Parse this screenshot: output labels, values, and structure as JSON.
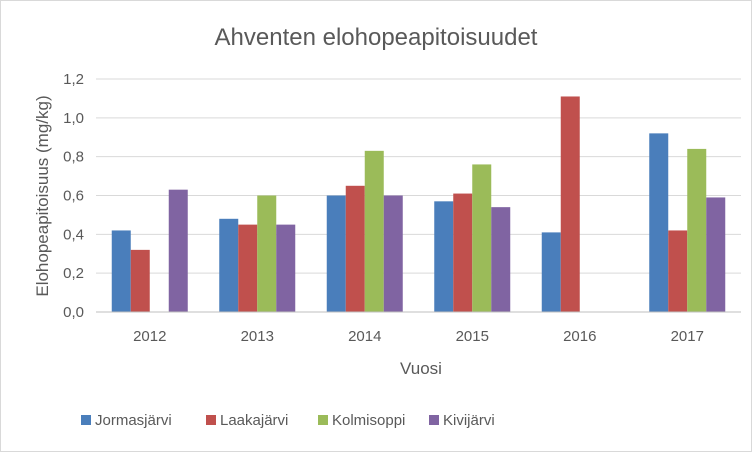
{
  "chart_data": {
    "type": "bar",
    "title": "Ahventen elohopeapitoisuudet",
    "xlabel": "Vuosi",
    "ylabel": "Elohopeapitoisuus (mg/kg)",
    "categories": [
      "2012",
      "2013",
      "2014",
      "2015",
      "2016",
      "2017"
    ],
    "ylim": [
      0,
      1.2
    ],
    "yticks": [
      0,
      0.2,
      0.4,
      0.6,
      0.8,
      1.0,
      1.2
    ],
    "ytick_labels": [
      "0,0",
      "0,2",
      "0,4",
      "0,6",
      "0,8",
      "1,0",
      "1,2"
    ],
    "grid": true,
    "legend_position": "bottom",
    "series": [
      {
        "name": "Jormasjärvi",
        "color": "#4a7ebb",
        "values": [
          0.42,
          0.48,
          0.6,
          0.57,
          0.41,
          0.92
        ]
      },
      {
        "name": "Laakajärvi",
        "color": "#c0504d",
        "values": [
          0.32,
          0.45,
          0.65,
          0.61,
          1.11,
          0.42
        ]
      },
      {
        "name": "Kolmisoppi",
        "color": "#9bbb59",
        "values": [
          null,
          0.6,
          0.83,
          0.76,
          null,
          0.84
        ]
      },
      {
        "name": "Kivijärvi",
        "color": "#8064a2",
        "values": [
          0.63,
          0.45,
          0.6,
          0.54,
          null,
          0.59
        ]
      }
    ]
  }
}
